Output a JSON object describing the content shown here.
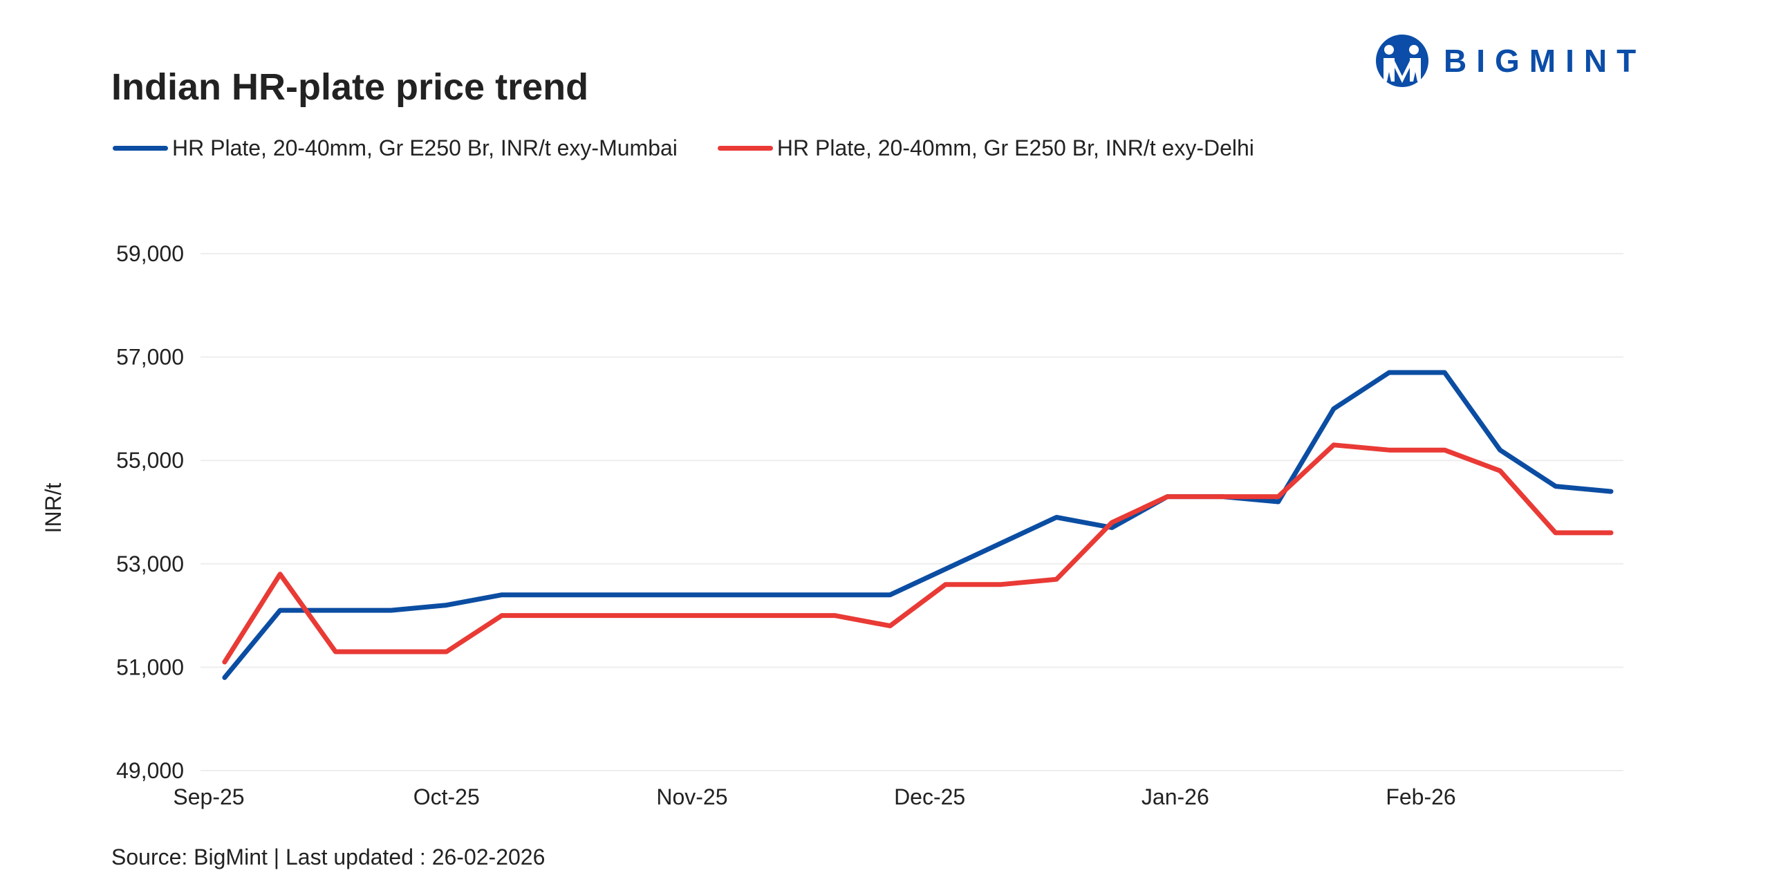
{
  "logo": {
    "text": "BIGMINT",
    "color": "#0b4da8"
  },
  "source": "Source: BigMint | Last updated : 26-02-2026",
  "chart_data": {
    "type": "line",
    "title": "Indian HR-plate price trend",
    "xlabel": "",
    "ylabel": "INR/t",
    "ylim": [
      49000,
      59000
    ],
    "yticks": [
      "49,000",
      "51,000",
      "53,000",
      "55,000",
      "57,000",
      "59,000"
    ],
    "ytick_values": [
      49000,
      51000,
      53000,
      55000,
      57000,
      59000
    ],
    "xticks": [
      "Sep-25",
      "Oct-25",
      "Nov-25",
      "Dec-25",
      "Jan-26",
      "Feb-26"
    ],
    "xtick_dates": [
      "2025-09-01",
      "2025-10-01",
      "2025-11-01",
      "2025-12-01",
      "2026-01-01",
      "2026-02-01"
    ],
    "grid": "horizontal",
    "legend": "top-left",
    "x": [
      "2025-09-03",
      "2025-09-10",
      "2025-09-17",
      "2025-09-24",
      "2025-10-01",
      "2025-10-08",
      "2025-10-15",
      "2025-10-22",
      "2025-10-29",
      "2025-11-05",
      "2025-11-12",
      "2025-11-19",
      "2025-11-26",
      "2025-12-03",
      "2025-12-10",
      "2025-12-17",
      "2025-12-24",
      "2025-12-31",
      "2026-01-07",
      "2026-01-14",
      "2026-01-21",
      "2026-01-28",
      "2026-02-04",
      "2026-02-11",
      "2026-02-18",
      "2026-02-25"
    ],
    "series": [
      {
        "name": "HR Plate, 20-40mm, Gr E250 Br, INR/t exy-Mumbai",
        "color": "#0b4da2",
        "values": [
          50800,
          52100,
          52100,
          52100,
          52200,
          52400,
          52400,
          52400,
          52400,
          52400,
          52400,
          52400,
          52400,
          52900,
          53400,
          53900,
          53700,
          54300,
          54300,
          54200,
          56000,
          56700,
          56700,
          55200,
          54500,
          54400
        ]
      },
      {
        "name": "HR Plate, 20-40mm, Gr E250 Br, INR/t exy-Delhi",
        "color": "#e93a35",
        "values": [
          51100,
          52800,
          51300,
          51300,
          51300,
          52000,
          52000,
          52000,
          52000,
          52000,
          52000,
          52000,
          51800,
          52600,
          52600,
          52700,
          53800,
          54300,
          54300,
          54300,
          55300,
          55200,
          55200,
          54800,
          53600,
          53600
        ]
      }
    ]
  }
}
